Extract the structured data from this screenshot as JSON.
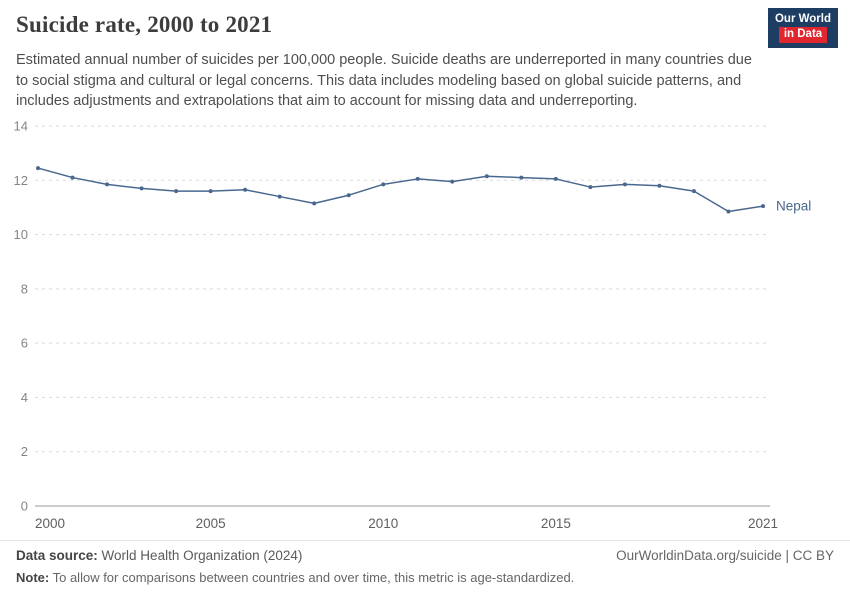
{
  "header": {
    "title": "Suicide rate, 2000 to 2021",
    "subtitle": "Estimated annual number of suicides per 100,000 people. Suicide deaths are underreported in many countries due to social stigma and cultural or legal concerns. This data includes modeling based on global suicide patterns, and includes adjustments and extrapolations that aim to account for missing data and underreporting.",
    "logo": {
      "line1": "Our World",
      "line2": "in Data",
      "bg": "#1d3d63",
      "accent": "#e0262e"
    }
  },
  "chart_data": {
    "type": "line",
    "title": "Suicide rate, 2000 to 2021",
    "xlabel": "",
    "ylabel": "",
    "ylim": [
      0,
      14
    ],
    "yticks": [
      0,
      2,
      4,
      6,
      8,
      10,
      12,
      14
    ],
    "xticks": [
      2000,
      2005,
      2010,
      2015,
      2021
    ],
    "grid": "horizontal-dashed",
    "legend": "end-of-line-label",
    "x": [
      2000,
      2001,
      2002,
      2003,
      2004,
      2005,
      2006,
      2007,
      2008,
      2009,
      2010,
      2011,
      2012,
      2013,
      2014,
      2015,
      2016,
      2017,
      2018,
      2019,
      2020,
      2021
    ],
    "series": [
      {
        "name": "Nepal",
        "color": "#4a688e",
        "values": [
          12.45,
          12.1,
          11.85,
          11.7,
          11.6,
          11.6,
          11.65,
          11.4,
          11.15,
          11.45,
          11.85,
          12.05,
          11.95,
          12.15,
          12.1,
          12.05,
          11.75,
          11.85,
          11.8,
          11.6,
          10.85,
          11.05
        ]
      }
    ]
  },
  "colors": {
    "grid": "#dadada",
    "axis": "#9a9a9a",
    "ytick": "#858585",
    "xtick": "#5f5f5f"
  },
  "footer": {
    "source_label": "Data source:",
    "source_text": "World Health Organization (2024)",
    "link": "OurWorldinData.org/suicide | CC BY",
    "note_label": "Note:",
    "note_text": "To allow for comparisons between countries and over time, this metric is age-standardized."
  }
}
